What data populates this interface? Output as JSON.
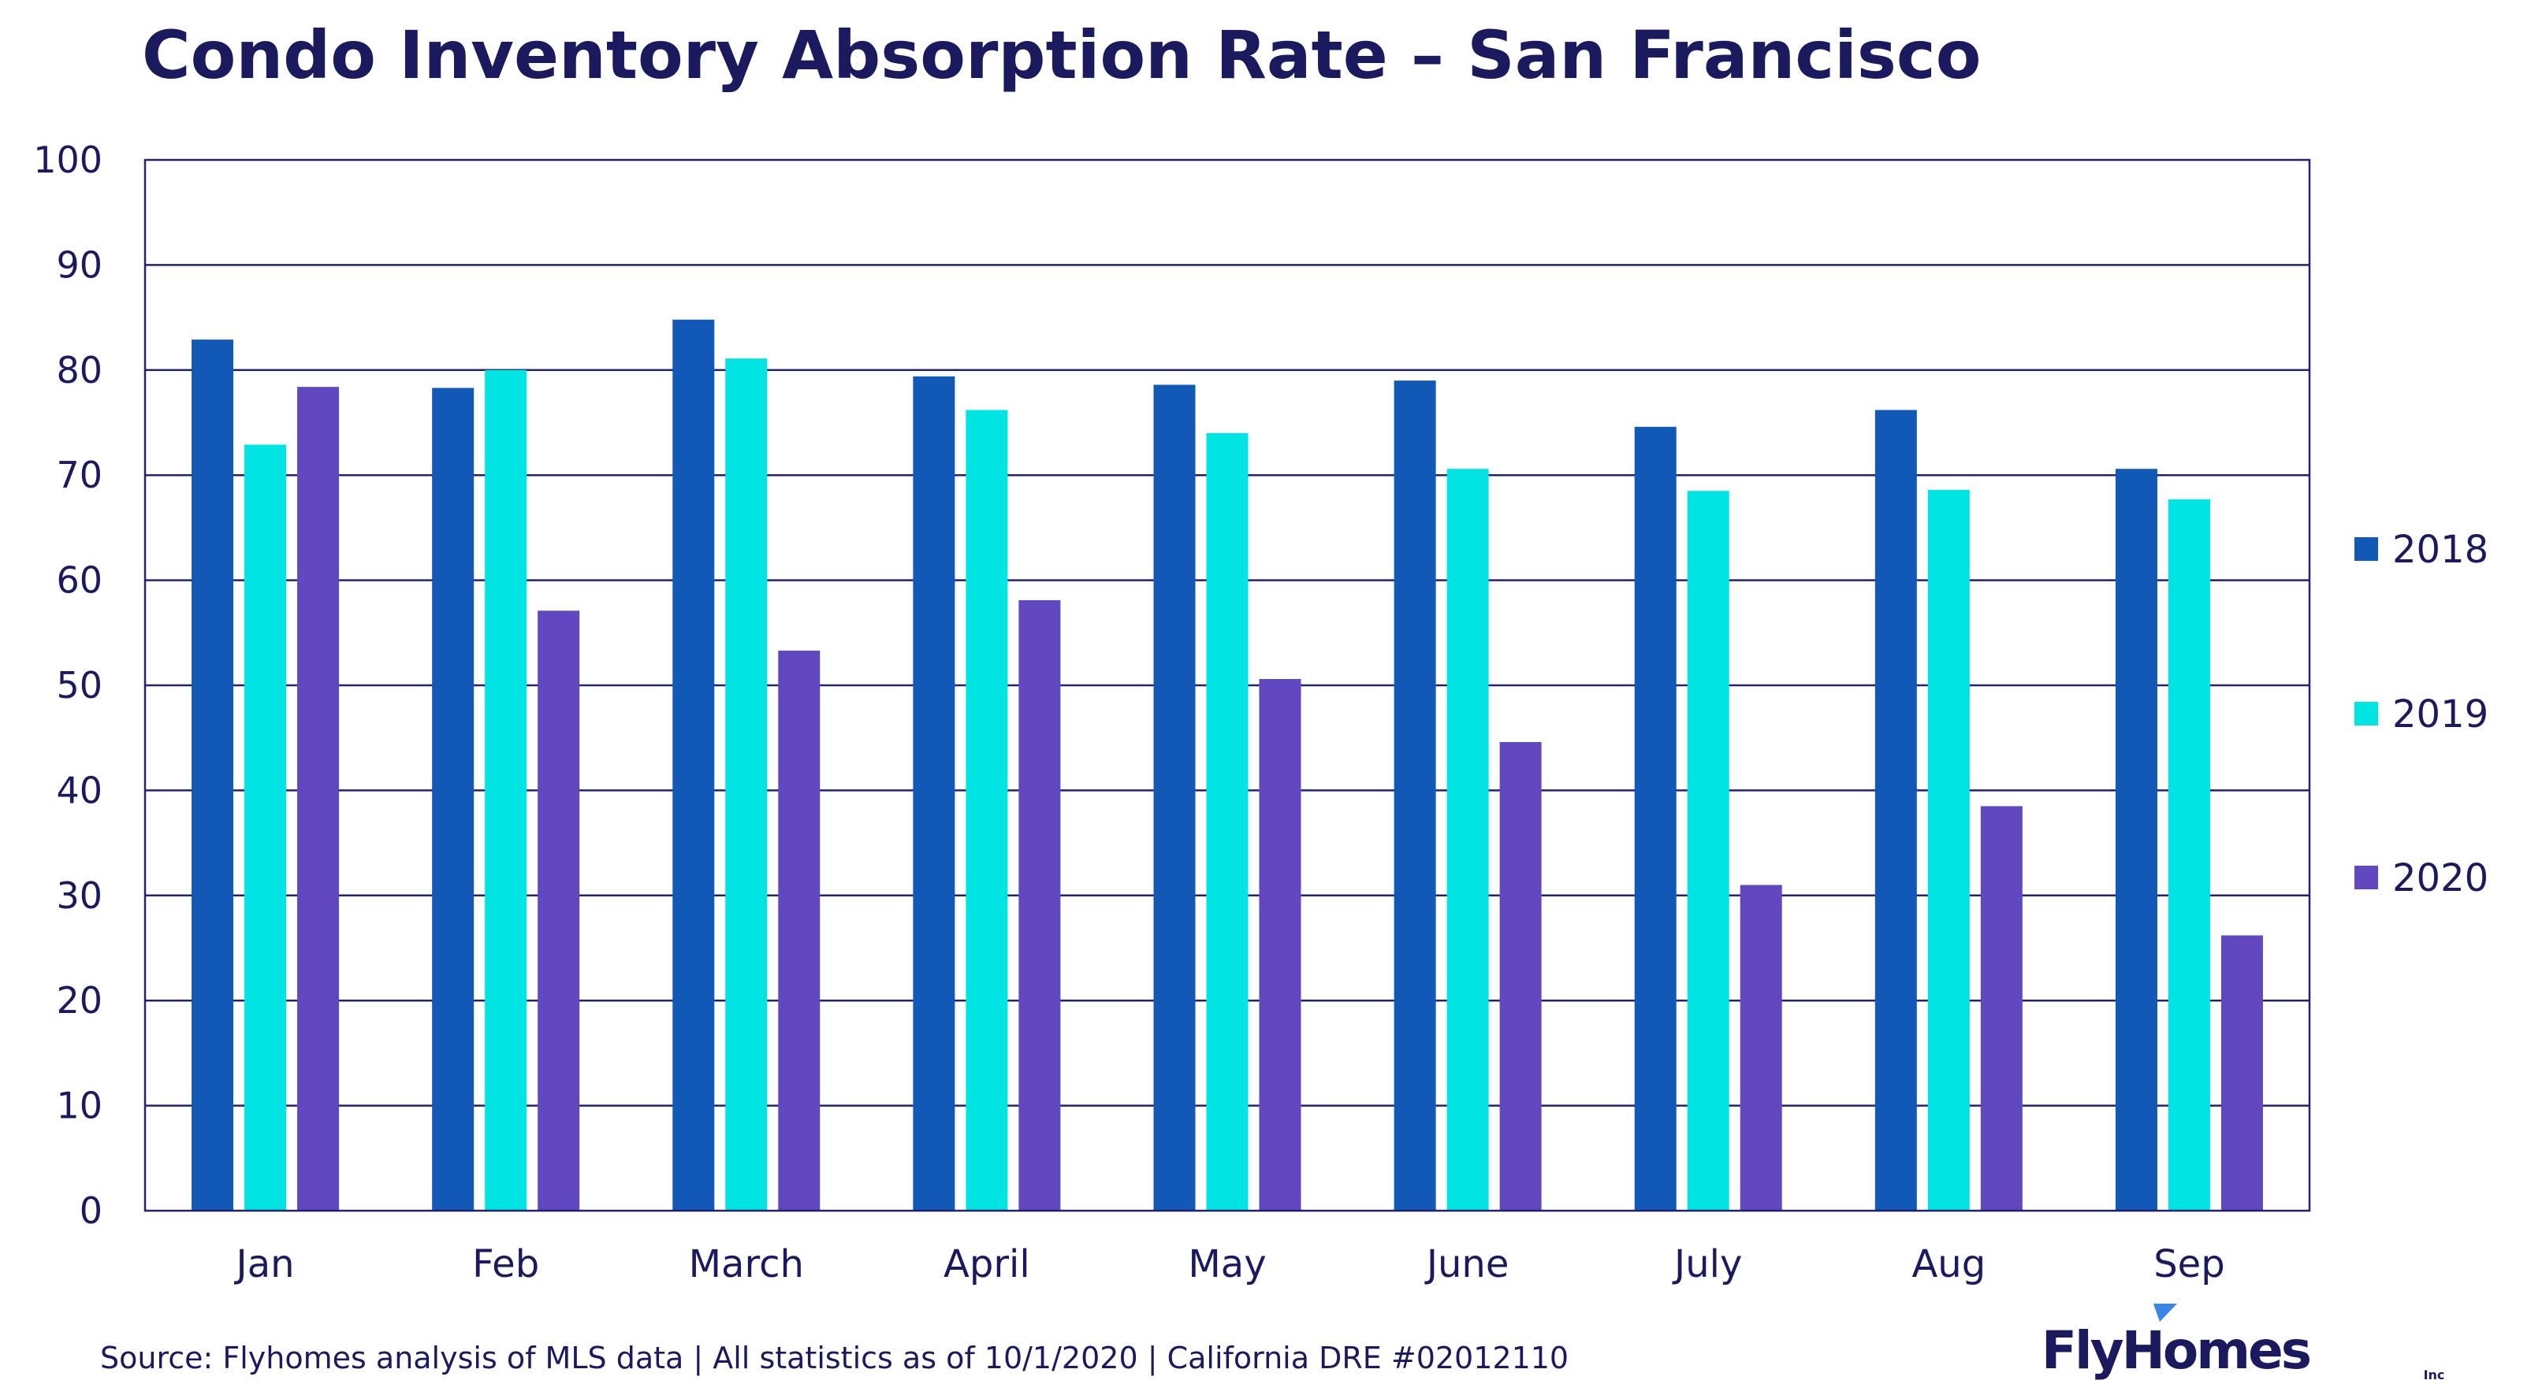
{
  "colors": {
    "text_dark": "#1c1a5e",
    "axis": "#23236b",
    "series_2018": "#1258b7",
    "series_2019": "#00e5e3",
    "series_2020": "#6148c1",
    "logo_accent": "#3a86e8"
  },
  "source": "Source: Flyhomes analysis of MLS data | All statistics as of 10/1/2020 | California DRE #02012110",
  "logo": {
    "name": "FlyHomes",
    "suffix": "Inc"
  },
  "chart_data": {
    "type": "bar",
    "title": "Condo Inventory Absorption Rate – San Francisco",
    "xlabel": "",
    "ylabel": "",
    "categories": [
      "Jan",
      "Feb",
      "March",
      "April",
      "May",
      "June",
      "July",
      "Aug",
      "Sep"
    ],
    "ylim": [
      0,
      100
    ],
    "yticks": [
      "0",
      "10",
      "20",
      "30",
      "40",
      "50",
      "60",
      "70",
      "80",
      "90",
      "100"
    ],
    "grid": "horizontal",
    "legend_position": "right",
    "series": [
      {
        "name": "2018",
        "color": "#1258b7",
        "values": [
          82.9,
          78.3,
          84.8,
          79.4,
          78.6,
          79.0,
          74.6,
          76.2,
          70.6
        ]
      },
      {
        "name": "2019",
        "color": "#00e5e3",
        "values": [
          72.9,
          80.0,
          81.1,
          76.2,
          74.0,
          70.6,
          68.5,
          68.6,
          67.7
        ]
      },
      {
        "name": "2020",
        "color": "#6148c1",
        "values": [
          78.4,
          57.1,
          53.3,
          58.1,
          50.6,
          44.6,
          31.0,
          38.5,
          26.2
        ]
      }
    ]
  }
}
